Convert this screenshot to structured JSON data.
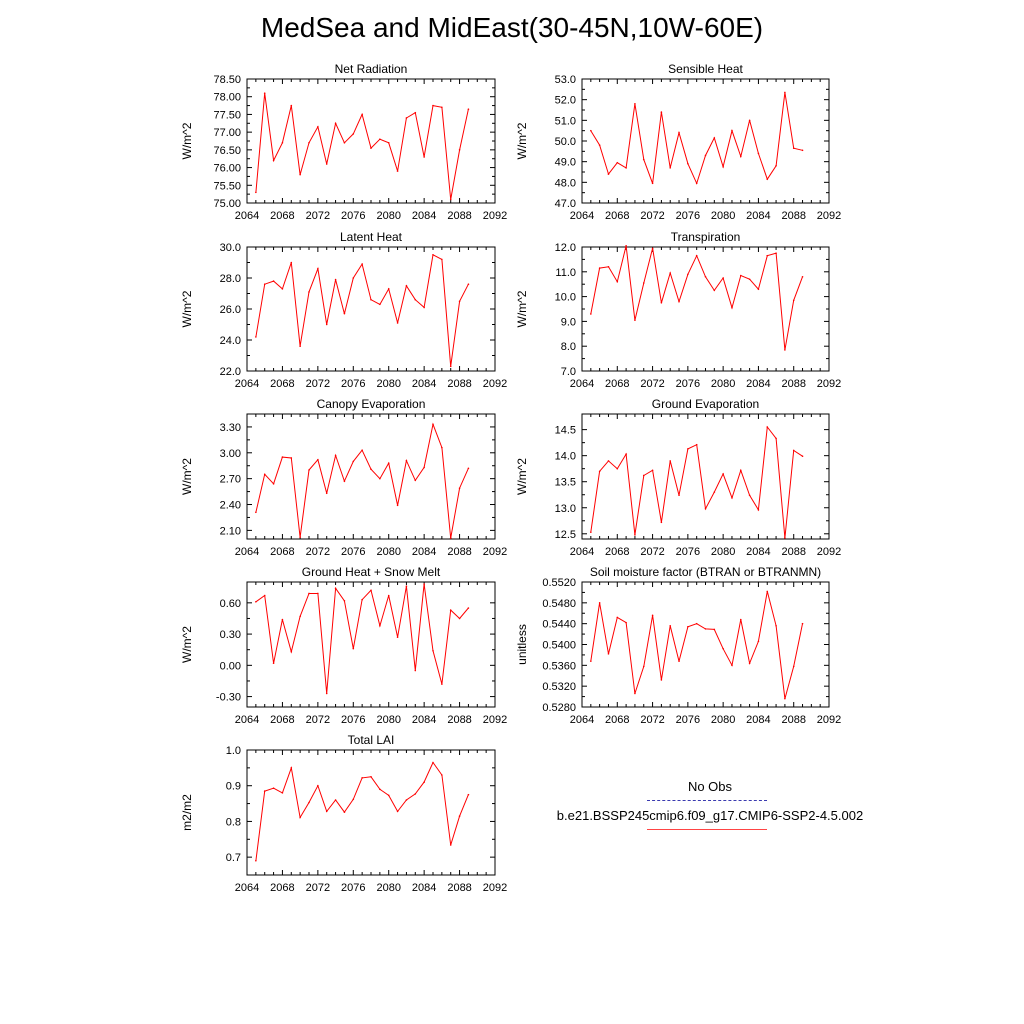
{
  "page_title": "MedSea and MidEast(30-45N,10W-60E)",
  "legend": {
    "obs_label": "No Obs",
    "obs_color": "#3a3ab0",
    "model_label": "b.e21.BSSP245cmip6.f09_g17.CMIP6-SSP2-4.5.002",
    "model_color": "#ff0000"
  },
  "chart_data": [
    {
      "type": "line",
      "title": "Net Radiation",
      "ylabel": "W/m^2",
      "xlabel": "",
      "xlim": [
        2064,
        2092
      ],
      "ylim": [
        75.0,
        78.5
      ],
      "x_ticks": [
        "2064",
        "2068",
        "2072",
        "2076",
        "2080",
        "2084",
        "2088",
        "2092"
      ],
      "y_ticks": [
        "75.00",
        "75.50",
        "76.00",
        "76.50",
        "77.00",
        "77.50",
        "78.00",
        "78.50"
      ],
      "x": [
        2065,
        2066,
        2067,
        2068,
        2069,
        2070,
        2071,
        2072,
        2073,
        2074,
        2075,
        2076,
        2077,
        2078,
        2079,
        2080,
        2081,
        2082,
        2083,
        2084,
        2085,
        2086,
        2087,
        2088,
        2089
      ],
      "series": [
        {
          "values": [
            75.3,
            78.1,
            76.2,
            76.7,
            77.75,
            75.8,
            76.7,
            77.15,
            76.1,
            77.25,
            76.7,
            76.95,
            77.5,
            76.55,
            76.8,
            76.7,
            75.9,
            77.4,
            77.55,
            76.3,
            77.75,
            77.7,
            75.1,
            76.5,
            77.65
          ]
        }
      ]
    },
    {
      "type": "line",
      "title": "Sensible Heat",
      "ylabel": "W/m^2",
      "xlabel": "",
      "xlim": [
        2064,
        2092
      ],
      "ylim": [
        47.0,
        53.0
      ],
      "x_ticks": [
        "2064",
        "2068",
        "2072",
        "2076",
        "2080",
        "2084",
        "2088",
        "2092"
      ],
      "y_ticks": [
        "47.0",
        "48.0",
        "49.0",
        "50.0",
        "51.0",
        "52.0",
        "53.0"
      ],
      "x": [
        2065,
        2066,
        2067,
        2068,
        2069,
        2070,
        2071,
        2072,
        2073,
        2074,
        2075,
        2076,
        2077,
        2078,
        2079,
        2080,
        2081,
        2082,
        2083,
        2084,
        2085,
        2086,
        2087,
        2088,
        2089
      ],
      "series": [
        {
          "values": [
            50.5,
            49.8,
            48.4,
            48.95,
            48.7,
            51.8,
            49.1,
            47.95,
            51.4,
            48.7,
            50.4,
            48.9,
            47.95,
            49.3,
            50.15,
            48.75,
            50.5,
            49.25,
            51.0,
            49.4,
            48.15,
            48.8,
            52.35,
            49.65,
            49.55
          ]
        }
      ]
    },
    {
      "type": "line",
      "title": "Latent Heat",
      "ylabel": "W/m^2",
      "xlabel": "",
      "xlim": [
        2064,
        2092
      ],
      "ylim": [
        22.0,
        30.0
      ],
      "x_ticks": [
        "2064",
        "2068",
        "2072",
        "2076",
        "2080",
        "2084",
        "2088",
        "2092"
      ],
      "y_ticks": [
        "22.0",
        "24.0",
        "26.0",
        "28.0",
        "30.0"
      ],
      "x": [
        2065,
        2066,
        2067,
        2068,
        2069,
        2070,
        2071,
        2072,
        2073,
        2074,
        2075,
        2076,
        2077,
        2078,
        2079,
        2080,
        2081,
        2082,
        2083,
        2084,
        2085,
        2086,
        2087,
        2088,
        2089
      ],
      "series": [
        {
          "values": [
            24.2,
            27.6,
            27.8,
            27.3,
            29.0,
            23.6,
            27.1,
            28.6,
            25.0,
            27.9,
            25.7,
            28.0,
            28.9,
            26.6,
            26.3,
            27.3,
            25.1,
            27.5,
            26.6,
            26.1,
            29.5,
            29.2,
            22.3,
            26.5,
            27.6
          ]
        }
      ]
    },
    {
      "type": "line",
      "title": "Transpiration",
      "ylabel": "W/m^2",
      "xlabel": "",
      "xlim": [
        2064,
        2092
      ],
      "ylim": [
        7.0,
        12.0
      ],
      "x_ticks": [
        "2064",
        "2068",
        "2072",
        "2076",
        "2080",
        "2084",
        "2088",
        "2092"
      ],
      "y_ticks": [
        "7.0",
        "8.0",
        "9.0",
        "10.0",
        "11.0",
        "12.0"
      ],
      "x": [
        2065,
        2066,
        2067,
        2068,
        2069,
        2070,
        2071,
        2072,
        2073,
        2074,
        2075,
        2076,
        2077,
        2078,
        2079,
        2080,
        2081,
        2082,
        2083,
        2084,
        2085,
        2086,
        2087,
        2088,
        2089
      ],
      "series": [
        {
          "values": [
            9.3,
            11.15,
            11.2,
            10.6,
            12.05,
            9.05,
            10.55,
            11.95,
            9.75,
            10.95,
            9.8,
            10.9,
            11.65,
            10.8,
            10.25,
            10.75,
            9.55,
            10.85,
            10.7,
            10.3,
            11.65,
            11.75,
            7.85,
            9.85,
            10.8
          ]
        }
      ]
    },
    {
      "type": "line",
      "title": "Canopy Evaporation",
      "ylabel": "W/m^2",
      "xlabel": "",
      "xlim": [
        2064,
        2092
      ],
      "ylim": [
        2.0,
        3.45
      ],
      "x_ticks": [
        "2064",
        "2068",
        "2072",
        "2076",
        "2080",
        "2084",
        "2088",
        "2092"
      ],
      "y_ticks": [
        "2.10",
        "2.40",
        "2.70",
        "3.00",
        "3.30"
      ],
      "y_tick_values": [
        2.1,
        2.4,
        2.7,
        3.0,
        3.3
      ],
      "x": [
        2065,
        2066,
        2067,
        2068,
        2069,
        2070,
        2071,
        2072,
        2073,
        2074,
        2075,
        2076,
        2077,
        2078,
        2079,
        2080,
        2081,
        2082,
        2083,
        2084,
        2085,
        2086,
        2087,
        2088,
        2089
      ],
      "series": [
        {
          "values": [
            2.31,
            2.75,
            2.64,
            2.95,
            2.94,
            2.02,
            2.8,
            2.92,
            2.53,
            2.97,
            2.67,
            2.9,
            3.03,
            2.81,
            2.7,
            2.88,
            2.39,
            2.91,
            2.68,
            2.83,
            3.33,
            3.06,
            2.01,
            2.59,
            2.82
          ]
        }
      ]
    },
    {
      "type": "line",
      "title": "Ground Evaporation",
      "ylabel": "W/m^2",
      "xlabel": "",
      "xlim": [
        2064,
        2092
      ],
      "ylim": [
        12.4,
        14.8
      ],
      "x_ticks": [
        "2064",
        "2068",
        "2072",
        "2076",
        "2080",
        "2084",
        "2088",
        "2092"
      ],
      "y_ticks": [
        "12.5",
        "13.0",
        "13.5",
        "14.0",
        "14.5"
      ],
      "y_tick_values": [
        12.5,
        13.0,
        13.5,
        14.0,
        14.5
      ],
      "x": [
        2065,
        2066,
        2067,
        2068,
        2069,
        2070,
        2071,
        2072,
        2073,
        2074,
        2075,
        2076,
        2077,
        2078,
        2079,
        2080,
        2081,
        2082,
        2083,
        2084,
        2085,
        2086,
        2087,
        2088,
        2089
      ],
      "series": [
        {
          "values": [
            12.53,
            13.7,
            13.9,
            13.75,
            14.03,
            12.48,
            13.62,
            13.72,
            12.72,
            13.9,
            13.24,
            14.13,
            14.21,
            12.98,
            13.3,
            13.65,
            13.19,
            13.72,
            13.24,
            12.96,
            14.55,
            14.33,
            12.42,
            14.1,
            13.99
          ]
        }
      ]
    },
    {
      "type": "line",
      "title": "Ground Heat + Snow Melt",
      "ylabel": "W/m^2",
      "xlabel": "",
      "xlim": [
        2064,
        2092
      ],
      "ylim": [
        -0.4,
        0.8
      ],
      "x_ticks": [
        "2064",
        "2068",
        "2072",
        "2076",
        "2080",
        "2084",
        "2088",
        "2092"
      ],
      "y_ticks": [
        "-0.30",
        "0.00",
        "0.30",
        "0.60"
      ],
      "y_tick_values": [
        -0.3,
        0.0,
        0.3,
        0.6
      ],
      "x": [
        2065,
        2066,
        2067,
        2068,
        2069,
        2070,
        2071,
        2072,
        2073,
        2074,
        2075,
        2076,
        2077,
        2078,
        2079,
        2080,
        2081,
        2082,
        2083,
        2084,
        2085,
        2086,
        2087,
        2088,
        2089
      ],
      "series": [
        {
          "values": [
            0.61,
            0.67,
            0.02,
            0.44,
            0.13,
            0.47,
            0.69,
            0.69,
            -0.27,
            0.74,
            0.62,
            0.16,
            0.63,
            0.72,
            0.38,
            0.67,
            0.27,
            0.76,
            -0.05,
            0.78,
            0.14,
            -0.18,
            0.53,
            0.45,
            0.55
          ]
        }
      ]
    },
    {
      "type": "line",
      "title": "Soil moisture factor (BTRAN or BTRANMN)",
      "ylabel": "unitless",
      "xlabel": "",
      "xlim": [
        2064,
        2092
      ],
      "ylim": [
        0.528,
        0.552
      ],
      "x_ticks": [
        "2064",
        "2068",
        "2072",
        "2076",
        "2080",
        "2084",
        "2088",
        "2092"
      ],
      "y_ticks": [
        "0.5280",
        "0.5320",
        "0.5360",
        "0.5400",
        "0.5440",
        "0.5480",
        "0.5520"
      ],
      "x": [
        2065,
        2066,
        2067,
        2068,
        2069,
        2070,
        2071,
        2072,
        2073,
        2074,
        2075,
        2076,
        2077,
        2078,
        2079,
        2080,
        2081,
        2082,
        2083,
        2084,
        2085,
        2086,
        2087,
        2088,
        2089
      ],
      "series": [
        {
          "values": [
            0.5368,
            0.548,
            0.5382,
            0.5452,
            0.5442,
            0.5306,
            0.5358,
            0.5456,
            0.5332,
            0.5436,
            0.5368,
            0.5434,
            0.544,
            0.543,
            0.5429,
            0.5392,
            0.536,
            0.5448,
            0.5364,
            0.5406,
            0.5502,
            0.5436,
            0.5296,
            0.5358,
            0.544
          ]
        }
      ]
    },
    {
      "type": "line",
      "title": "Total LAI",
      "ylabel": "m2/m2",
      "xlabel": "",
      "xlim": [
        2064,
        2092
      ],
      "ylim": [
        0.65,
        1.0
      ],
      "x_ticks": [
        "2064",
        "2068",
        "2072",
        "2076",
        "2080",
        "2084",
        "2088",
        "2092"
      ],
      "y_ticks": [
        "0.7",
        "0.8",
        "0.9",
        "1.0"
      ],
      "y_tick_values": [
        0.7,
        0.8,
        0.9,
        1.0
      ],
      "x": [
        2065,
        2066,
        2067,
        2068,
        2069,
        2070,
        2071,
        2072,
        2073,
        2074,
        2075,
        2076,
        2077,
        2078,
        2079,
        2080,
        2081,
        2082,
        2083,
        2084,
        2085,
        2086,
        2087,
        2088,
        2089
      ],
      "series": [
        {
          "values": [
            0.69,
            0.885,
            0.893,
            0.88,
            0.95,
            0.811,
            0.853,
            0.9,
            0.828,
            0.86,
            0.826,
            0.862,
            0.922,
            0.925,
            0.89,
            0.873,
            0.828,
            0.86,
            0.877,
            0.91,
            0.965,
            0.93,
            0.734,
            0.815,
            0.875
          ]
        }
      ]
    }
  ]
}
